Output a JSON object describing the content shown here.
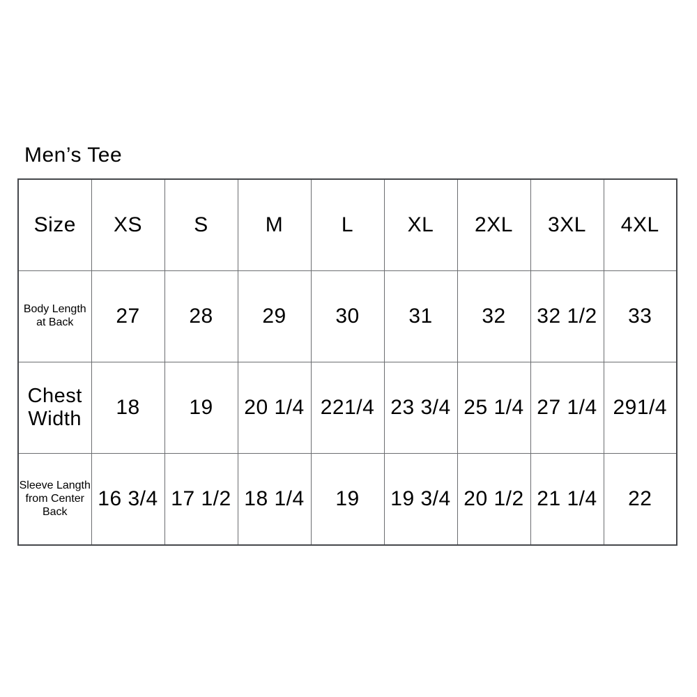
{
  "page": {
    "title": "Men’s Tee"
  },
  "chart_data": {
    "type": "table",
    "title": "Men’s Tee",
    "columns": [
      "Size",
      "XS",
      "S",
      "M",
      "L",
      "XL",
      "2XL",
      "3XL",
      "4XL"
    ],
    "rows": [
      {
        "label": "Body Length\nat Back",
        "values": [
          "27",
          "28",
          "29",
          "30",
          "31",
          "32",
          "32 1/2",
          "33"
        ]
      },
      {
        "label": "Chest\nWidth",
        "values": [
          "18",
          "19",
          "20 1/4",
          "221/4",
          "23 3/4",
          "25 1/4",
          "27 1/4",
          "291/4"
        ]
      },
      {
        "label": "Sleeve Langth\nfrom Center\nBack",
        "values": [
          "16 3/4",
          "17 1/2",
          "18 1/4",
          "19",
          "19 3/4",
          "20 1/2",
          "21 1/4",
          "22"
        ]
      }
    ],
    "layout": {
      "background": "#ffffff",
      "text_color": "#000000",
      "border_outer_color": "#45474b",
      "border_inner_color": "#6b6d70"
    }
  }
}
